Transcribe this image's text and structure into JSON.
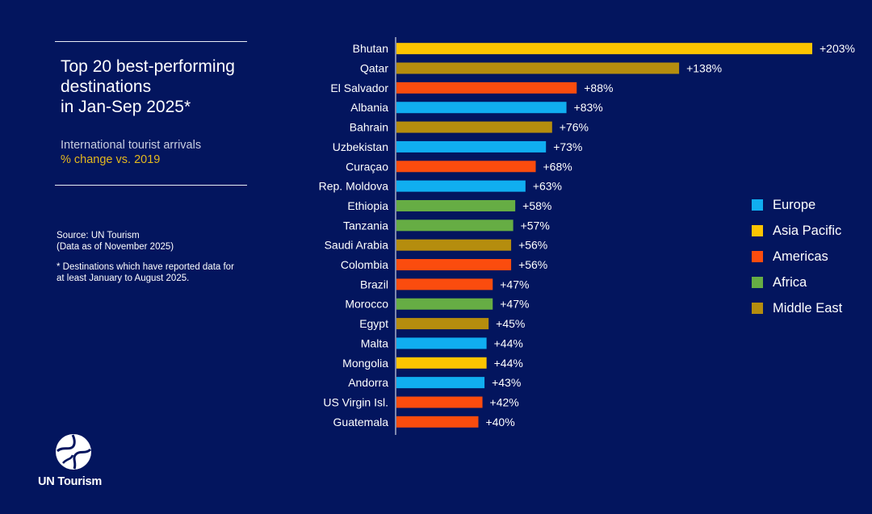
{
  "header": {
    "title_lines": [
      "Top 20 best-performing",
      "destinations",
      "in Jan-Sep 2025*"
    ],
    "subtitle_line1": "International tourist arrivals",
    "subtitle_line2": "% change vs. 2019"
  },
  "notes": {
    "source_line1": "Source: UN Tourism",
    "source_line2": "(Data as of November 2025)",
    "footnote_line1": "* Destinations which have reported data for",
    "footnote_line2": "at least January to August 2025."
  },
  "brand": {
    "logo_text": "UN Tourism"
  },
  "colors": {
    "background": "#03155e",
    "Europe": "#10aef0",
    "Asia Pacific": "#fdc400",
    "Americas": "#fb4c0e",
    "Africa": "#66ad44",
    "Middle East": "#b58d0e"
  },
  "chart_data": {
    "type": "bar",
    "orientation": "horizontal",
    "title": "Top 20 best-performing destinations in Jan-Sep 2025*",
    "subtitle": "International tourist arrivals % change vs. 2019",
    "xlim": [
      0,
      210
    ],
    "grid": false,
    "legend_position": "right",
    "legend": [
      "Europe",
      "Asia Pacific",
      "Americas",
      "Africa",
      "Middle East"
    ],
    "categories": [
      "Bhutan",
      "Qatar",
      "El Salvador",
      "Albania",
      "Bahrain",
      "Uzbekistan",
      "Curaçao",
      "Rep. Moldova",
      "Ethiopia",
      "Tanzania",
      "Saudi Arabia",
      "Colombia",
      "Brazil",
      "Morocco",
      "Egypt",
      "Malta",
      "Mongolia",
      "Andorra",
      "US Virgin Isl.",
      "Guatemala"
    ],
    "values": [
      203,
      138,
      88,
      83,
      76,
      73,
      68,
      63,
      58,
      57,
      56,
      56,
      47,
      47,
      45,
      44,
      44,
      43,
      42,
      40
    ],
    "labels": [
      "+203%",
      "+138%",
      "+88%",
      "+83%",
      "+76%",
      "+73%",
      "+68%",
      "+63%",
      "+58%",
      "+57%",
      "+56%",
      "+56%",
      "+47%",
      "+47%",
      "+45%",
      "+44%",
      "+44%",
      "+43%",
      "+42%",
      "+40%"
    ],
    "regions": [
      "Asia Pacific",
      "Middle East",
      "Americas",
      "Europe",
      "Middle East",
      "Europe",
      "Americas",
      "Europe",
      "Africa",
      "Africa",
      "Middle East",
      "Americas",
      "Americas",
      "Africa",
      "Middle East",
      "Europe",
      "Asia Pacific",
      "Europe",
      "Americas",
      "Americas"
    ]
  }
}
